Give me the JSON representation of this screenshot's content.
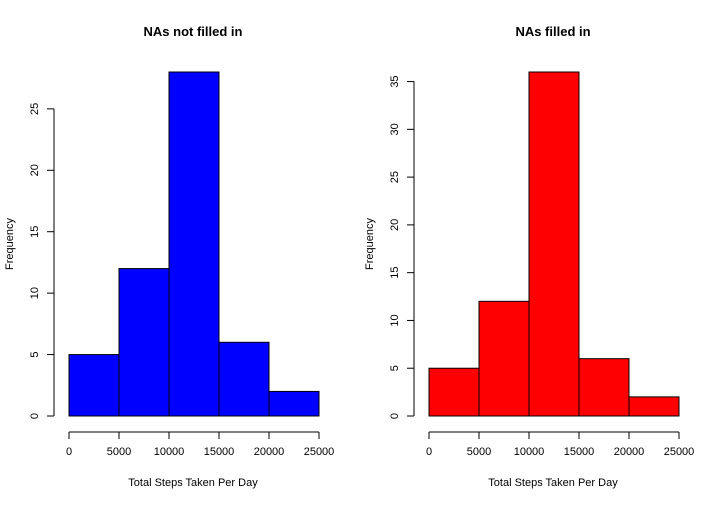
{
  "chart_data": [
    {
      "type": "bar",
      "title": "NAs not filled in",
      "xlabel": "Total Steps Taken Per Day",
      "ylabel": "Frequency",
      "bins": [
        [
          0,
          5000
        ],
        [
          5000,
          10000
        ],
        [
          10000,
          15000
        ],
        [
          15000,
          20000
        ],
        [
          20000,
          25000
        ]
      ],
      "values": [
        5,
        12,
        28,
        6,
        2
      ],
      "xticks": [
        "0",
        "5000",
        "10000",
        "15000",
        "20000",
        "25000"
      ],
      "xtick_values": [
        0,
        5000,
        10000,
        15000,
        20000,
        25000
      ],
      "yticks": [
        "0",
        "5",
        "10",
        "15",
        "20",
        "25"
      ],
      "ytick_values": [
        0,
        5,
        10,
        15,
        20,
        25
      ],
      "xlim": [
        0,
        25000
      ],
      "ylim": [
        0,
        28
      ],
      "fill": "#0000ff",
      "grid": false
    },
    {
      "type": "bar",
      "title": "NAs filled in",
      "xlabel": "Total Steps Taken Per Day",
      "ylabel": "Frequency",
      "bins": [
        [
          0,
          5000
        ],
        [
          5000,
          10000
        ],
        [
          10000,
          15000
        ],
        [
          15000,
          20000
        ],
        [
          20000,
          25000
        ]
      ],
      "values": [
        5,
        12,
        36,
        6,
        2
      ],
      "xticks": [
        "0",
        "5000",
        "10000",
        "15000",
        "20000",
        "25000"
      ],
      "xtick_values": [
        0,
        5000,
        10000,
        15000,
        20000,
        25000
      ],
      "yticks": [
        "0",
        "5",
        "10",
        "15",
        "20",
        "25",
        "30",
        "35"
      ],
      "ytick_values": [
        0,
        5,
        10,
        15,
        20,
        25,
        30,
        35
      ],
      "xlim": [
        0,
        25000
      ],
      "ylim": [
        0,
        36
      ],
      "fill": "#ff0000",
      "grid": false
    }
  ]
}
